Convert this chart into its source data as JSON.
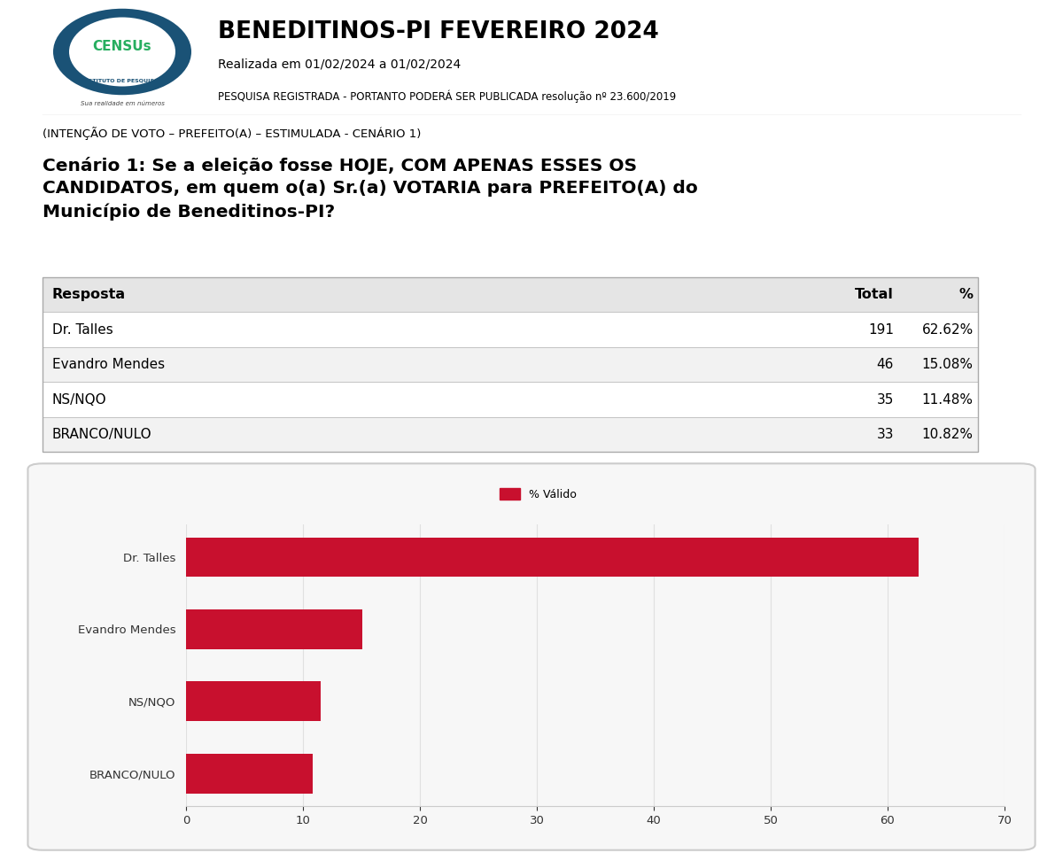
{
  "header_title": "BENEDITINOS-PI FEVEREIRO 2024",
  "header_sub1": "Realizada em 01/02/2024 a 01/02/2024",
  "header_sub2": "PESQUISA REGISTRADA - PORTANTO PODERÁ SER PUBLICADA resolução nº 23.600/2019",
  "question_label": "(INTENÇÃO DE VOTO – PREFEITO(A) – ESTIMULADA - CENÁRIO 1)",
  "question_text": "Cenário 1: Se a eleição fosse HOJE, COM APENAS ESSES OS\nCANDIDATOS, em quem o(a) Sr.(a) VOTARIA para PREFEITO(A) do\nMunicípio de Beneditinos-PI?",
  "table_headers": [
    "Resposta",
    "Total",
    "%"
  ],
  "table_rows": [
    [
      "Dr. Talles",
      "191",
      "62.62%"
    ],
    [
      "Evandro Mendes",
      "46",
      "15.08%"
    ],
    [
      "NS/NQO",
      "35",
      "11.48%"
    ],
    [
      "BRANCO/NULO",
      "33",
      "10.82%"
    ]
  ],
  "bar_categories": [
    "Dr. Talles",
    "Evandro Mendes",
    "NS/NQO",
    "BRANCO/NULO"
  ],
  "bar_values": [
    62.62,
    15.08,
    11.48,
    10.82
  ],
  "bar_color": "#c8102e",
  "legend_color": "#c8102e",
  "xlim": [
    0,
    70
  ],
  "xticks": [
    0,
    10,
    20,
    30,
    40,
    50,
    60,
    70
  ],
  "chart_bg": "#f7f7f7",
  "bg_color": "#ffffff",
  "legend_label": "% Válido",
  "grid_color": "#e0e0e0",
  "logo_outer_color": "#1a5276",
  "logo_inner_color": "#ffffff",
  "logo_green": "#27ae60",
  "logo_text_color": "#1a5276"
}
